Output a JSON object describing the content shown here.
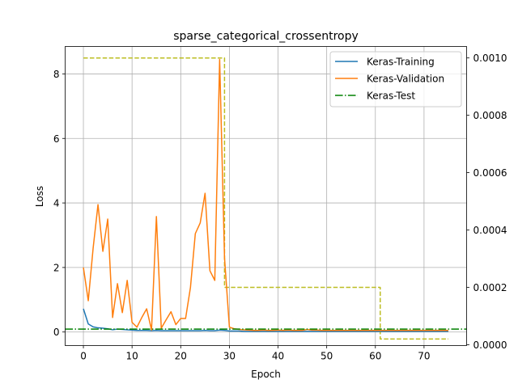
{
  "chart_data": {
    "type": "line",
    "title": "sparse_categorical_crossentropy",
    "xlabel": "Epoch",
    "ylabel": "Loss",
    "xlim": [
      -3.75,
      78.75
    ],
    "ylim": [
      -0.42,
      8.85
    ],
    "y2lim": [
      -3e-06,
      0.00104
    ],
    "xticks": [
      0,
      10,
      20,
      30,
      40,
      50,
      60,
      70
    ],
    "yticks": [
      0,
      2,
      4,
      6,
      8
    ],
    "y2ticks": [
      0.0,
      0.0002,
      0.0004,
      0.0006,
      0.0008,
      0.001
    ],
    "y2tick_labels": [
      "0.0000",
      "0.0002",
      "0.0004",
      "0.0006",
      "0.0008",
      "0.0010"
    ],
    "grid": true,
    "legend_position": "top-right",
    "series": [
      {
        "name": "Keras-Training",
        "color": "#1f77b4",
        "style": "solid",
        "axis": "left",
        "x": [
          0,
          1,
          2,
          3,
          4,
          5,
          6,
          7,
          8,
          9,
          10,
          11,
          12,
          13,
          14,
          15,
          16,
          17,
          18,
          19,
          20,
          21,
          22,
          23,
          24,
          25,
          26,
          27,
          28,
          29,
          30,
          31,
          32,
          33,
          34,
          35,
          36,
          37,
          38,
          39,
          40,
          41,
          42,
          43,
          44,
          45,
          46,
          47,
          48,
          49,
          50,
          51,
          52,
          53,
          54,
          55,
          56,
          57,
          58,
          59,
          60,
          61,
          62,
          63,
          64,
          65,
          66,
          67,
          68,
          69,
          70,
          71,
          72,
          73,
          74,
          75
        ],
        "y": [
          0.72,
          0.25,
          0.16,
          0.13,
          0.12,
          0.1,
          0.07,
          0.09,
          0.08,
          0.07,
          0.06,
          0.05,
          0.05,
          0.05,
          0.04,
          0.05,
          0.04,
          0.04,
          0.04,
          0.04,
          0.04,
          0.04,
          0.04,
          0.04,
          0.04,
          0.05,
          0.04,
          0.04,
          0.06,
          0.05,
          0.03,
          0.03,
          0.03,
          0.02,
          0.02,
          0.02,
          0.02,
          0.02,
          0.02,
          0.02,
          0.02,
          0.02,
          0.02,
          0.02,
          0.02,
          0.02,
          0.02,
          0.02,
          0.02,
          0.02,
          0.02,
          0.02,
          0.02,
          0.02,
          0.02,
          0.02,
          0.02,
          0.02,
          0.02,
          0.02,
          0.02,
          0.02,
          0.02,
          0.02,
          0.02,
          0.02,
          0.02,
          0.02,
          0.02,
          0.02,
          0.02,
          0.02,
          0.02,
          0.02,
          0.02,
          0.02
        ]
      },
      {
        "name": "Keras-Validation",
        "color": "#ff7f0e",
        "style": "solid",
        "axis": "left",
        "x": [
          0,
          1,
          2,
          3,
          4,
          5,
          6,
          7,
          8,
          9,
          10,
          11,
          12,
          13,
          14,
          15,
          16,
          17,
          18,
          19,
          20,
          21,
          22,
          23,
          24,
          25,
          26,
          27,
          28,
          29,
          30,
          31,
          32,
          33,
          34,
          35,
          36,
          37,
          38,
          39,
          40,
          41,
          42,
          43,
          44,
          45,
          46,
          47,
          48,
          49,
          50,
          51,
          52,
          53,
          54,
          55,
          56,
          57,
          58,
          59,
          60,
          61,
          62,
          63,
          64,
          65,
          66,
          67,
          68,
          69,
          70,
          71,
          72,
          73,
          74,
          75
        ],
        "y": [
          2.0,
          0.97,
          2.6,
          3.95,
          2.5,
          3.5,
          0.45,
          1.5,
          0.6,
          1.6,
          0.3,
          0.15,
          0.45,
          0.72,
          0.06,
          3.58,
          0.12,
          0.38,
          0.63,
          0.23,
          0.42,
          0.42,
          1.38,
          3.05,
          3.38,
          4.3,
          1.9,
          1.6,
          8.45,
          2.3,
          0.15,
          0.1,
          0.08,
          0.07,
          0.06,
          0.05,
          0.05,
          0.06,
          0.05,
          0.05,
          0.06,
          0.05,
          0.06,
          0.05,
          0.05,
          0.05,
          0.08,
          0.06,
          0.06,
          0.05,
          0.05,
          0.05,
          0.05,
          0.05,
          0.05,
          0.05,
          0.05,
          0.05,
          0.05,
          0.05,
          0.05,
          0.05,
          0.05,
          0.05,
          0.05,
          0.05,
          0.05,
          0.05,
          0.05,
          0.05,
          0.05,
          0.05,
          0.05,
          0.05,
          0.05,
          0.05
        ]
      },
      {
        "name": "Keras-Test",
        "color": "#008000",
        "style": "dashdot",
        "axis": "left",
        "x": [
          -3.75,
          78.75
        ],
        "y": [
          0.09,
          0.09
        ]
      },
      {
        "name": "",
        "color": "#bcbd22",
        "style": "dashed",
        "axis": "right",
        "x": [
          0,
          29,
          29,
          60,
          60,
          61,
          61,
          75
        ],
        "y": [
          0.001,
          0.001,
          0.0002,
          0.0002,
          0.0002,
          0.0002,
          2e-05,
          2e-05
        ]
      }
    ]
  }
}
